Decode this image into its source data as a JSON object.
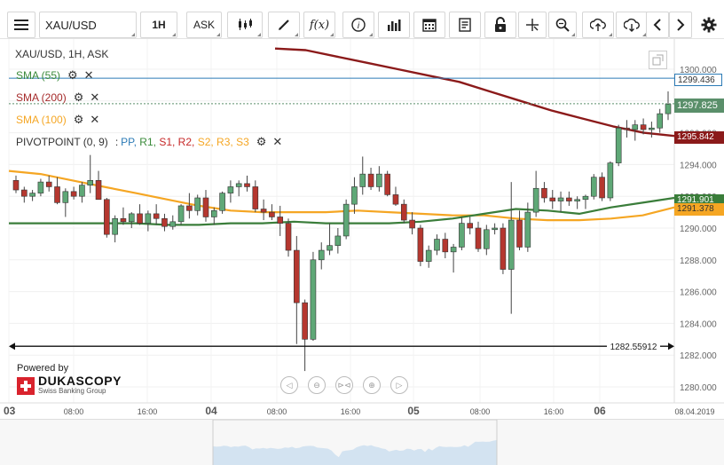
{
  "toolbar": {
    "symbol": "XAU/USD",
    "timeframe": "1H",
    "side": "ASK",
    "buttons": [
      "menu-icon",
      "candles-icon",
      "draw-icon",
      "indicator-icon",
      "info-icon",
      "volume-icon",
      "calendar-icon",
      "report-icon",
      "lock-icon",
      "crosshair-icon",
      "zoom-icon",
      "upload-icon",
      "download-icon",
      "prev-icon",
      "next-icon",
      "settings-icon"
    ]
  },
  "chart": {
    "title": "XAU/USD, 1H, ASK",
    "indicators": [
      {
        "label": "SMA (55)",
        "color": "#3a8a3a"
      },
      {
        "label": "SMA (200)",
        "color": "#a52a2a"
      },
      {
        "label": "SMA (100)",
        "color": "#f5a623"
      }
    ],
    "pivot": {
      "label": "PIVOTPOINT (0, 9)",
      "sep": ":",
      "parts": [
        {
          "t": "PP",
          "c": "#2c7bb6"
        },
        {
          "t": "R1",
          "c": "#3a8a3a"
        },
        {
          "t": "S1",
          "c": "#c62828"
        },
        {
          "t": "R2",
          "c": "#c62828"
        },
        {
          "t": "S2",
          "c": "#f5a623"
        },
        {
          "t": "R3",
          "c": "#f5a623"
        },
        {
          "t": "S3",
          "c": "#f5a623"
        }
      ]
    },
    "price_tags": {
      "pp": "1299.436",
      "current": "1297.825",
      "sma200": "1295.842",
      "sma55": "1291.901",
      "sma100": "1291.378"
    },
    "y_ticks": [
      "1300.000",
      "1298.000",
      "1296.000",
      "1294.000",
      "1292.000",
      "1290.000",
      "1288.000",
      "1286.000",
      "1284.000",
      "1282.000",
      "1280.000"
    ],
    "x_labels": [
      "03",
      "08:00",
      "16:00",
      "04",
      "08:00",
      "16:00",
      "05",
      "08:00",
      "16:00",
      "06",
      "08.04.2019"
    ],
    "low_line_label": "1282.55912",
    "pp_level": 1299.436,
    "last_price": 1297.825,
    "low_level": 1282.55912,
    "candles": [
      [
        1293.0,
        1293.3,
        1292.2,
        1292.4
      ],
      [
        1292.4,
        1292.6,
        1291.6,
        1292.0
      ],
      [
        1292.0,
        1292.4,
        1291.7,
        1292.2
      ],
      [
        1292.2,
        1293.1,
        1292.0,
        1292.9
      ],
      [
        1292.9,
        1293.3,
        1292.3,
        1292.6
      ],
      [
        1292.6,
        1293.2,
        1291.5,
        1291.6
      ],
      [
        1291.6,
        1292.5,
        1290.7,
        1292.3
      ],
      [
        1292.3,
        1292.6,
        1291.8,
        1292.0
      ],
      [
        1292.0,
        1292.9,
        1291.6,
        1292.7
      ],
      [
        1292.7,
        1294.6,
        1292.2,
        1293.0
      ],
      [
        1293.0,
        1293.6,
        1291.8,
        1291.8
      ],
      [
        1291.8,
        1291.9,
        1289.4,
        1289.6
      ],
      [
        1289.6,
        1290.8,
        1289.1,
        1290.6
      ],
      [
        1290.6,
        1291.3,
        1290.2,
        1290.4
      ],
      [
        1290.4,
        1291.0,
        1290.0,
        1290.9
      ],
      [
        1290.9,
        1291.5,
        1290.2,
        1290.3
      ],
      [
        1290.3,
        1291.1,
        1289.8,
        1290.9
      ],
      [
        1290.9,
        1291.5,
        1290.2,
        1290.6
      ],
      [
        1290.6,
        1290.9,
        1289.8,
        1290.1
      ],
      [
        1290.1,
        1290.8,
        1289.9,
        1290.4
      ],
      [
        1290.4,
        1291.5,
        1290.2,
        1291.4
      ],
      [
        1291.4,
        1292.2,
        1290.6,
        1291.1
      ],
      [
        1291.1,
        1292.1,
        1290.8,
        1291.9
      ],
      [
        1291.9,
        1292.4,
        1290.4,
        1290.7
      ],
      [
        1290.7,
        1291.3,
        1290.2,
        1291.1
      ],
      [
        1291.1,
        1292.3,
        1290.9,
        1292.2
      ],
      [
        1292.2,
        1293.0,
        1291.6,
        1292.6
      ],
      [
        1292.6,
        1293.0,
        1292.0,
        1292.8
      ],
      [
        1292.8,
        1293.3,
        1292.3,
        1292.6
      ],
      [
        1292.6,
        1293.0,
        1291.0,
        1291.2
      ],
      [
        1291.2,
        1291.8,
        1290.5,
        1291.0
      ],
      [
        1291.0,
        1291.5,
        1290.5,
        1290.7
      ],
      [
        1290.7,
        1291.4,
        1289.5,
        1290.3
      ],
      [
        1290.3,
        1290.6,
        1288.2,
        1288.6
      ],
      [
        1288.6,
        1289.5,
        1282.7,
        1285.3
      ],
      [
        1285.3,
        1285.5,
        1281.0,
        1283.0
      ],
      [
        1283.0,
        1288.5,
        1282.9,
        1288.0
      ],
      [
        1288.0,
        1289.1,
        1287.4,
        1288.6
      ],
      [
        1288.6,
        1290.3,
        1288.3,
        1288.9
      ],
      [
        1288.9,
        1290.0,
        1288.4,
        1289.5
      ],
      [
        1289.5,
        1291.8,
        1289.3,
        1291.5
      ],
      [
        1291.5,
        1293.2,
        1290.9,
        1292.6
      ],
      [
        1292.6,
        1294.5,
        1292.1,
        1293.4
      ],
      [
        1293.4,
        1293.8,
        1292.4,
        1292.6
      ],
      [
        1292.6,
        1293.9,
        1292.3,
        1293.4
      ],
      [
        1293.4,
        1293.6,
        1292.0,
        1292.1
      ],
      [
        1292.1,
        1292.6,
        1291.4,
        1291.5
      ],
      [
        1291.5,
        1291.8,
        1290.3,
        1290.5
      ],
      [
        1290.5,
        1291.0,
        1289.6,
        1290.0
      ],
      [
        1290.0,
        1290.2,
        1287.6,
        1287.9
      ],
      [
        1287.9,
        1288.9,
        1287.5,
        1288.6
      ],
      [
        1288.6,
        1289.6,
        1288.3,
        1289.3
      ],
      [
        1289.3,
        1289.7,
        1288.1,
        1288.5
      ],
      [
        1288.5,
        1289.0,
        1287.2,
        1288.8
      ],
      [
        1288.8,
        1290.7,
        1288.6,
        1290.3
      ],
      [
        1290.3,
        1290.7,
        1289.6,
        1290.0
      ],
      [
        1290.0,
        1290.4,
        1288.5,
        1288.7
      ],
      [
        1288.7,
        1290.2,
        1288.3,
        1289.9
      ],
      [
        1289.9,
        1290.3,
        1289.6,
        1290.0
      ],
      [
        1290.0,
        1290.3,
        1287.1,
        1287.4
      ],
      [
        1287.4,
        1292.9,
        1284.6,
        1290.5
      ],
      [
        1290.5,
        1291.1,
        1288.6,
        1288.8
      ],
      [
        1288.8,
        1291.6,
        1288.5,
        1291.0
      ],
      [
        1291.0,
        1293.6,
        1290.7,
        1292.5
      ],
      [
        1292.5,
        1292.9,
        1291.6,
        1291.9
      ],
      [
        1291.9,
        1292.4,
        1291.2,
        1291.7
      ],
      [
        1291.7,
        1292.3,
        1291.0,
        1291.9
      ],
      [
        1291.9,
        1292.3,
        1291.4,
        1291.7
      ],
      [
        1291.7,
        1292.0,
        1291.2,
        1291.8
      ],
      [
        1291.8,
        1292.1,
        1291.2,
        1292.0
      ],
      [
        1292.0,
        1293.4,
        1291.8,
        1293.2
      ],
      [
        1293.2,
        1293.5,
        1291.7,
        1291.9
      ],
      [
        1291.9,
        1294.2,
        1291.7,
        1294.1
      ],
      [
        1294.1,
        1296.5,
        1293.9,
        1296.3
      ],
      [
        1296.3,
        1296.8,
        1295.7,
        1296.2
      ],
      [
        1296.2,
        1296.8,
        1295.5,
        1296.5
      ],
      [
        1296.5,
        1296.9,
        1295.9,
        1296.2
      ],
      [
        1296.2,
        1296.7,
        1295.7,
        1296.3
      ],
      [
        1296.3,
        1297.5,
        1296.0,
        1297.2
      ],
      [
        1297.2,
        1298.6,
        1296.8,
        1297.8
      ]
    ],
    "sma55": [
      1290.3,
      1290.3,
      1290.3,
      1290.3,
      1290.3,
      1290.2,
      1290.2,
      1290.3,
      1290.3,
      1290.4,
      1290.3,
      1290.3,
      1290.3,
      1290.4,
      1290.6,
      1290.9,
      1291.2,
      1291.1,
      1290.9,
      1291.3,
      1291.6,
      1291.9
    ],
    "sma100": [
      1293.6,
      1293.4,
      1293.0,
      1292.6,
      1292.2,
      1291.8,
      1291.4,
      1291.1,
      1291.0,
      1291.0,
      1291.0,
      1291.1,
      1291.0,
      1290.9,
      1290.8,
      1290.8,
      1290.6,
      1290.5,
      1290.5,
      1290.6,
      1290.8,
      1291.3
    ],
    "sma200": [
      1301.3,
      1301.2,
      1300.8,
      1300.4,
      1300.0,
      1299.6,
      1299.2,
      1298.6,
      1298.0,
      1297.4,
      1296.9,
      1296.4,
      1296.0,
      1295.8
    ],
    "y_min": 1279.6,
    "y_max": 1301.9
  }
}
